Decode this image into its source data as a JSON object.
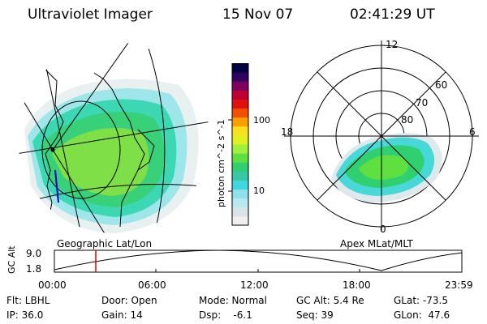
{
  "header": {
    "title": "Ultraviolet Imager",
    "date": "15 Nov 07",
    "time": "02:41:29 UT"
  },
  "colorbar": {
    "unit_label": "photon cm^-2 s^-1",
    "ticks": [
      "100",
      "10"
    ],
    "colors": [
      "#f0f0f0",
      "#d8e4e8",
      "#b8e8f0",
      "#90e0e8",
      "#40d8e0",
      "#38c8a8",
      "#30d070",
      "#60e040",
      "#a0f040",
      "#e0f020",
      "#f8e020",
      "#f8a000",
      "#f05000",
      "#e01010",
      "#c00030",
      "#800060",
      "#300060",
      "#000040"
    ]
  },
  "left_map": {
    "caption": "Geographic Lat/Lon",
    "aurora_color": "#30d070",
    "accent": "#48d8d8"
  },
  "polar_map": {
    "caption": "Apex MLat/MLT",
    "hour_labels": {
      "top": "12",
      "left": "18",
      "right": "6",
      "bottom": "0"
    },
    "lat_labels": [
      "60",
      "70",
      "80"
    ]
  },
  "altitude_plot": {
    "ylabel": "GC Alt",
    "yticks": [
      "9.0",
      "1.8"
    ],
    "xticks": [
      "00:00",
      "06:00",
      "12:00",
      "18:00",
      "23:59"
    ],
    "current_time_color": "#e00000"
  },
  "info": {
    "row1": [
      "Flt: LBHL",
      "Door: Open",
      "Mode: Normal",
      "GC Alt: 5.4 Re",
      "GLat: -73.5"
    ],
    "row2": [
      "IP: 36.0",
      "Gain: 14",
      "Dsp:    -6.1",
      "Seq: 39",
      "GLon:  47.6"
    ]
  }
}
